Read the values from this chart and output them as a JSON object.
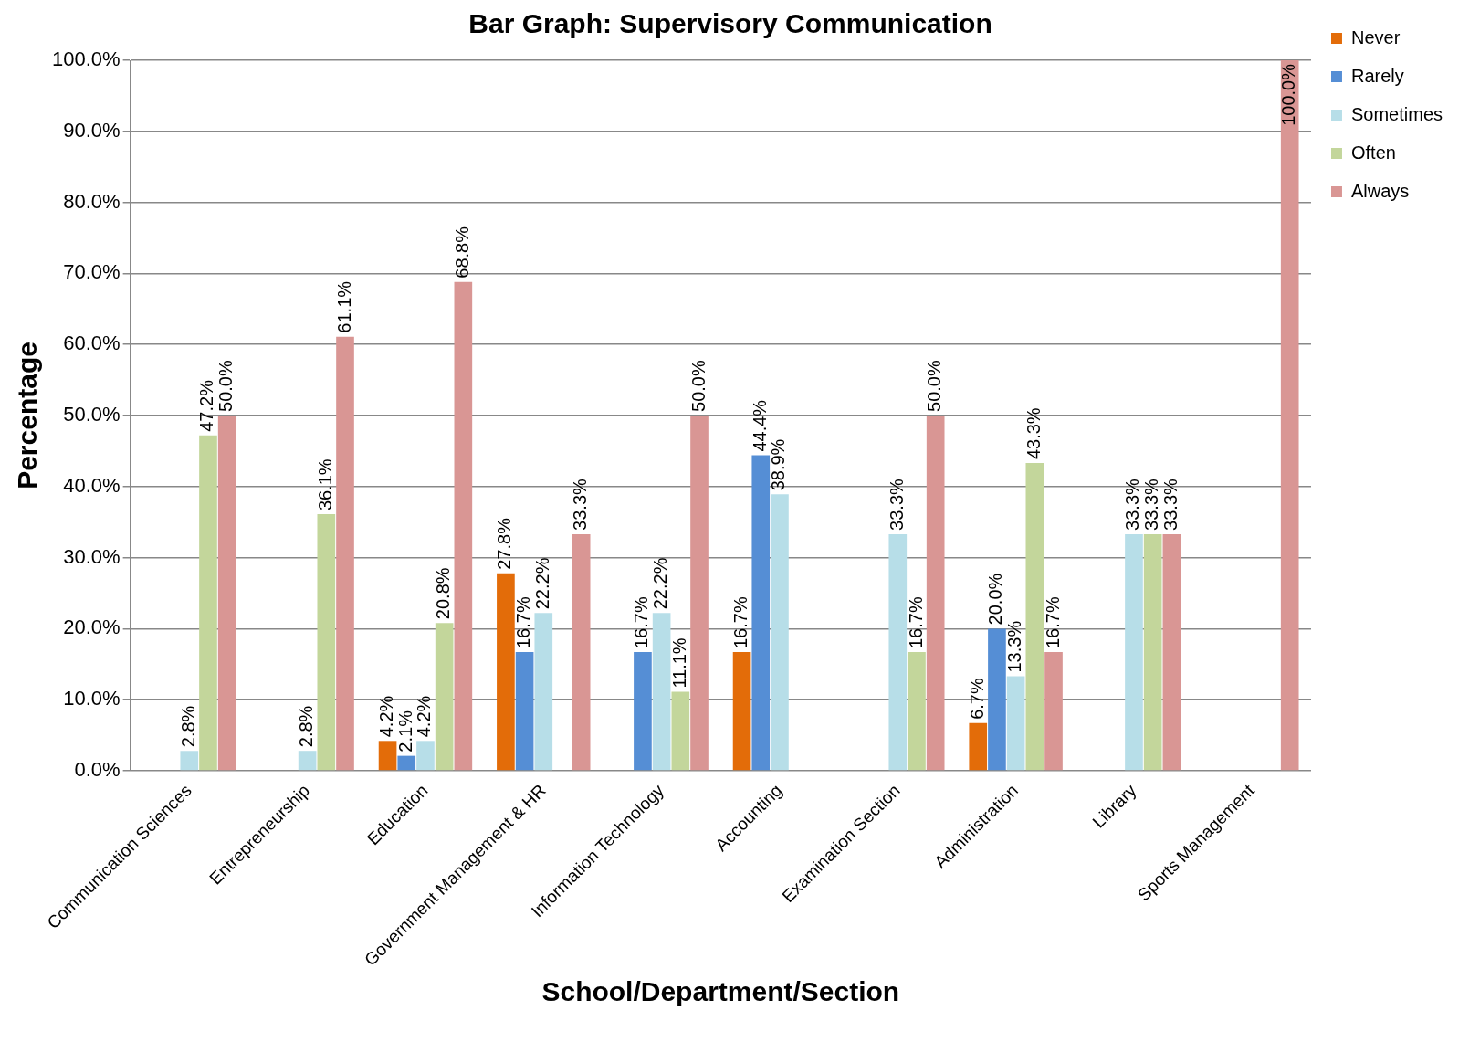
{
  "chart_data": {
    "type": "bar",
    "title": "Bar Graph: Supervisory Communication",
    "xlabel": "School/Department/Section",
    "ylabel": "Percentage",
    "categories": [
      "Communication Sciences",
      "Entrepreneurship",
      "Education",
      "Government Management & HR",
      "Information Technology",
      "Accounting",
      "Examination Section",
      "Administration",
      "Library",
      "Sports Management"
    ],
    "series": [
      {
        "name": "Never",
        "color": "#e36c09",
        "values": [
          null,
          null,
          4.2,
          27.8,
          null,
          16.7,
          null,
          6.7,
          null,
          null
        ],
        "value_labels": [
          null,
          null,
          "4.2%",
          "27.8%",
          null,
          "16.7%",
          null,
          "6.7%",
          null,
          null
        ]
      },
      {
        "name": "Rarely",
        "color": "#558ed5",
        "values": [
          null,
          null,
          2.1,
          16.7,
          16.7,
          44.4,
          null,
          20.0,
          null,
          null
        ],
        "value_labels": [
          null,
          null,
          "2.1%",
          "16.7%",
          "16.7%",
          "44.4%",
          null,
          "20.0%",
          null,
          null
        ]
      },
      {
        "name": "Sometimes",
        "color": "#b7dee8",
        "values": [
          2.8,
          2.8,
          4.2,
          22.2,
          22.2,
          38.9,
          33.3,
          13.3,
          33.3,
          null
        ],
        "value_labels": [
          "2.8%",
          "2.8%",
          "4.2%",
          "22.2%",
          "22.2%",
          "38.9%",
          "33.3%",
          "13.3%",
          "33.3%",
          null
        ]
      },
      {
        "name": "Often",
        "color": "#c3d69b",
        "values": [
          47.2,
          36.1,
          20.8,
          null,
          11.1,
          null,
          16.7,
          43.3,
          33.3,
          null
        ],
        "value_labels": [
          "47.2%",
          "36.1%",
          "20.8%",
          null,
          "11.1%",
          null,
          "16.7%",
          "43.3%",
          "33.3%",
          null
        ]
      },
      {
        "name": "Always",
        "color": "#d99694",
        "values": [
          50.0,
          61.1,
          68.8,
          33.3,
          50.0,
          null,
          50.0,
          16.7,
          33.3,
          100.0
        ],
        "value_labels": [
          "50.0%",
          "61.1%",
          "68.8%",
          "33.3%",
          "50.0%",
          null,
          "50.0%",
          "16.7%",
          "33.3%",
          "100.0%"
        ]
      }
    ],
    "ylim": [
      0,
      100
    ],
    "yticks": [
      {
        "value": 0,
        "label": "0.0%"
      },
      {
        "value": 10,
        "label": "10.0%"
      },
      {
        "value": 20,
        "label": "20.0%"
      },
      {
        "value": 30,
        "label": "30.0%"
      },
      {
        "value": 40,
        "label": "40.0%"
      },
      {
        "value": 50,
        "label": "50.0%"
      },
      {
        "value": 60,
        "label": "60.0%"
      },
      {
        "value": 70,
        "label": "70.0%"
      },
      {
        "value": 80,
        "label": "80.0%"
      },
      {
        "value": 90,
        "label": "90.0%"
      },
      {
        "value": 100,
        "label": "100.0%"
      }
    ],
    "grid": "y",
    "legend": "top right"
  }
}
